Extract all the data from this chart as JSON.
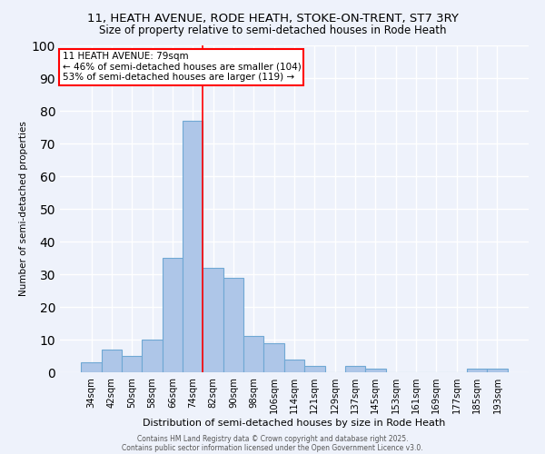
{
  "title1": "11, HEATH AVENUE, RODE HEATH, STOKE-ON-TRENT, ST7 3RY",
  "title2": "Size of property relative to semi-detached houses in Rode Heath",
  "xlabel": "Distribution of semi-detached houses by size in Rode Heath",
  "ylabel": "Number of semi-detached properties",
  "categories": [
    "34sqm",
    "42sqm",
    "50sqm",
    "58sqm",
    "66sqm",
    "74sqm",
    "82sqm",
    "90sqm",
    "98sqm",
    "106sqm",
    "114sqm",
    "121sqm",
    "129sqm",
    "137sqm",
    "145sqm",
    "153sqm",
    "161sqm",
    "169sqm",
    "177sqm",
    "185sqm",
    "193sqm"
  ],
  "values": [
    3,
    7,
    5,
    10,
    35,
    77,
    32,
    29,
    11,
    9,
    4,
    2,
    0,
    2,
    1,
    0,
    0,
    0,
    0,
    1,
    1
  ],
  "bar_color": "#aec6e8",
  "bar_edge_color": "#6fa8d4",
  "red_line_index": 5.5,
  "annotation_title": "11 HEATH AVENUE: 79sqm",
  "annotation_line1": "← 46% of semi-detached houses are smaller (104)",
  "annotation_line2": "53% of semi-detached houses are larger (119) →",
  "ylim": [
    0,
    100
  ],
  "yticks": [
    0,
    10,
    20,
    30,
    40,
    50,
    60,
    70,
    80,
    90,
    100
  ],
  "background_color": "#eef2fb",
  "grid_color": "#ffffff",
  "footer1": "Contains HM Land Registry data © Crown copyright and database right 2025.",
  "footer2": "Contains public sector information licensed under the Open Government Licence v3.0."
}
